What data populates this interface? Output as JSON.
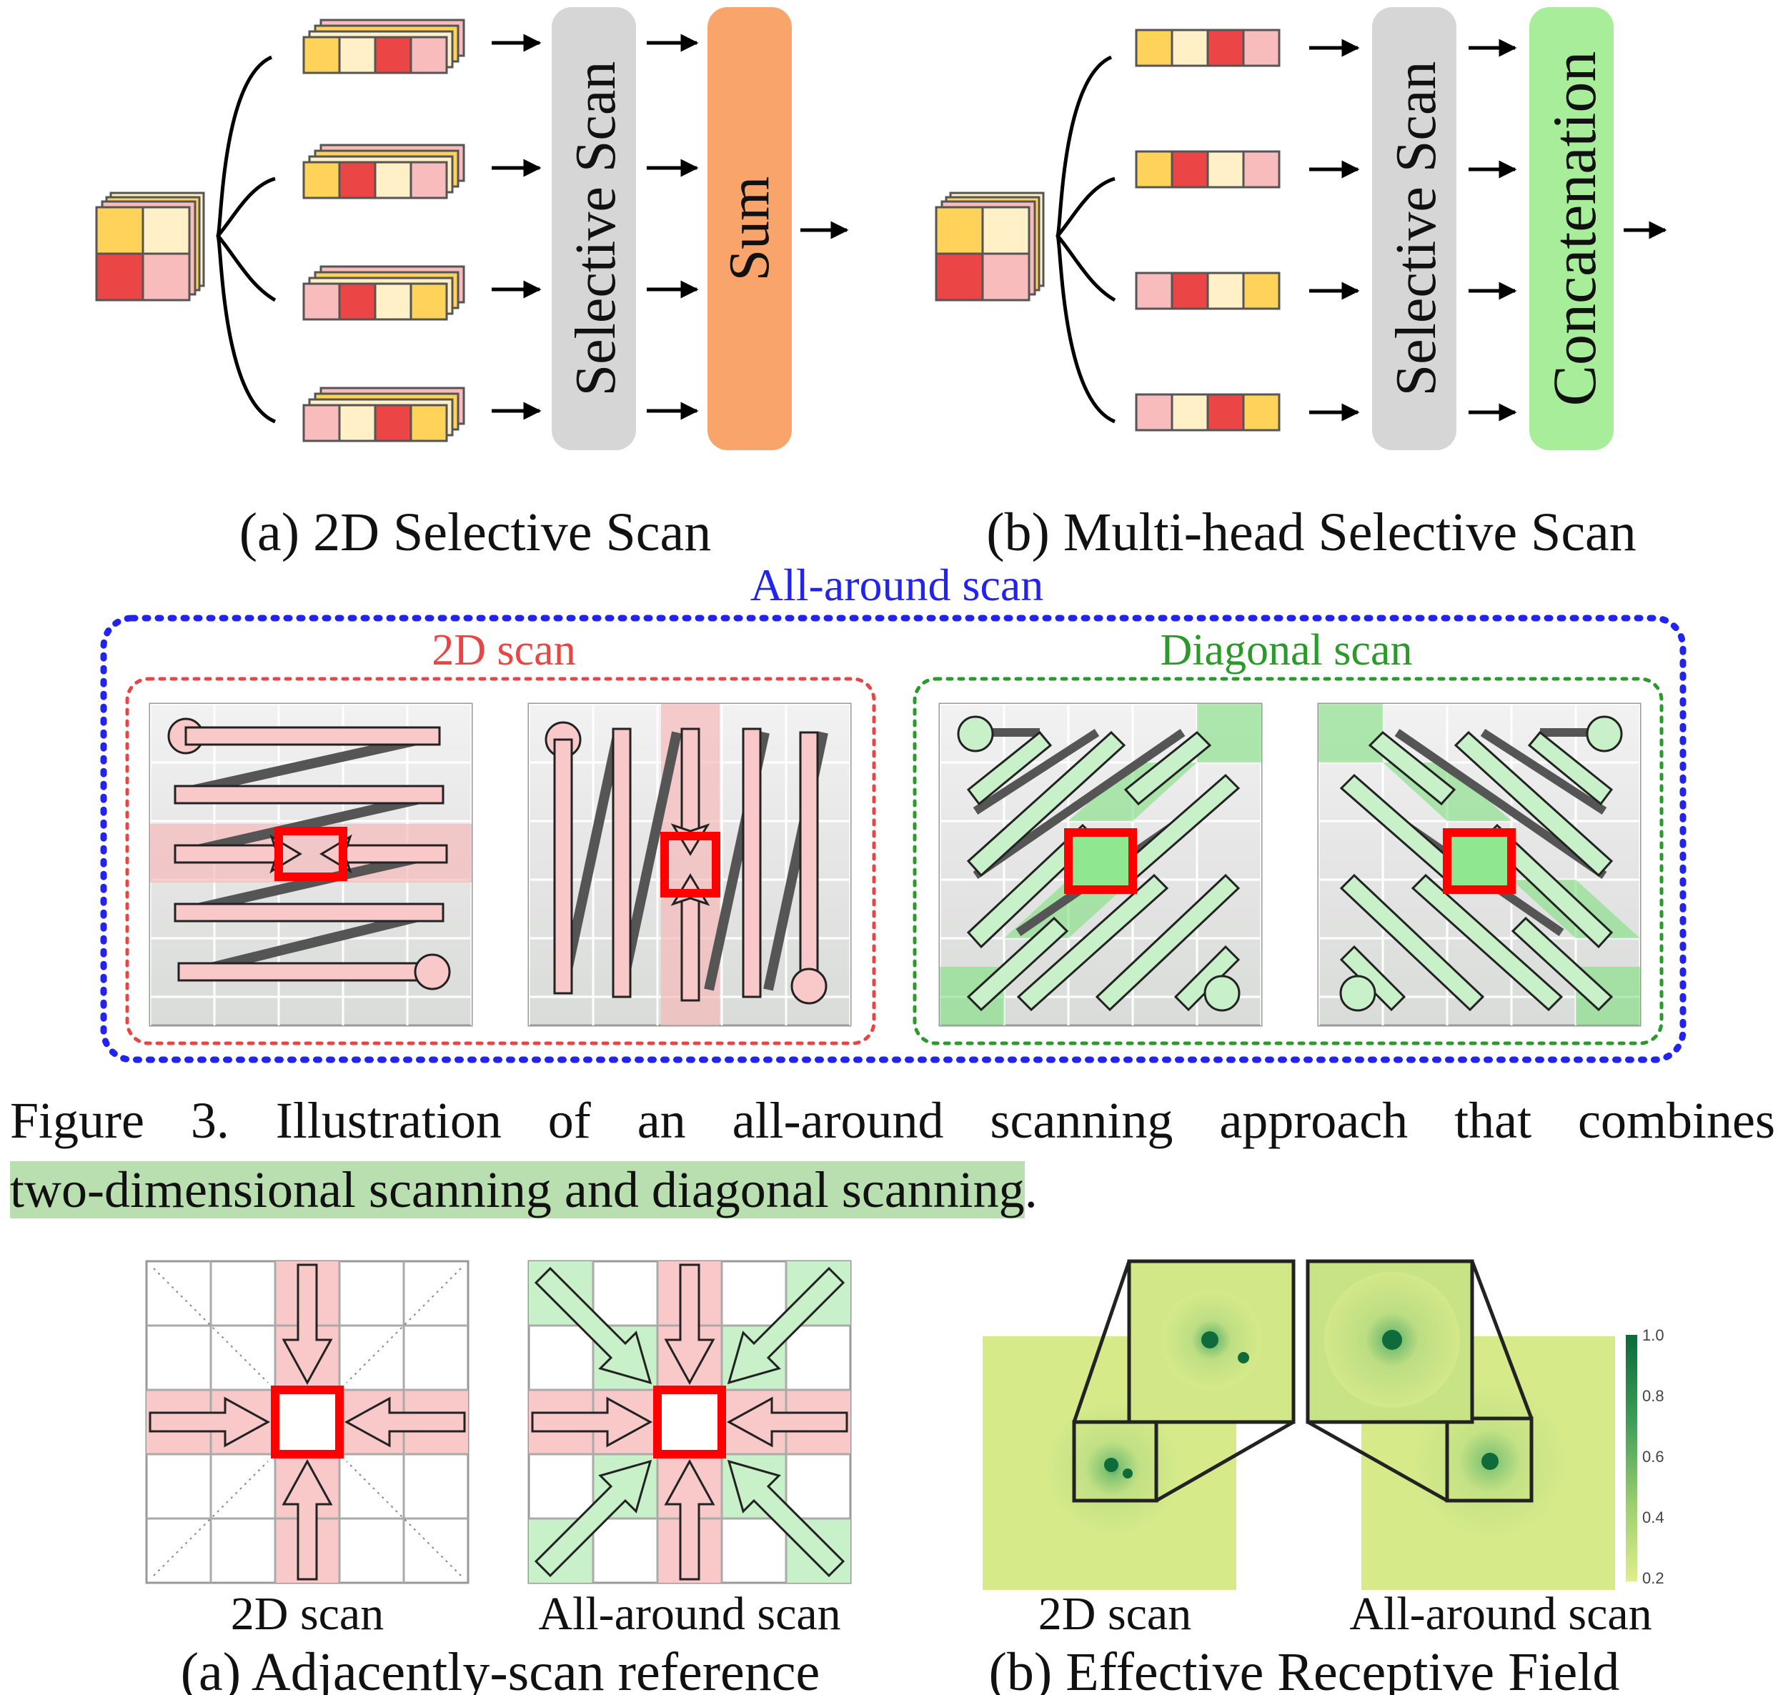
{
  "panel_a_top": {
    "block1": "Selective Scan",
    "block2": "Sum",
    "caption": "(a) 2D Selective Scan"
  },
  "panel_b_top": {
    "block1": "Selective Scan",
    "block2": "Concatenation",
    "caption": "(b) Multi-head Selective Scan"
  },
  "all_around": {
    "title": "All-around scan",
    "group_2d": "2D scan",
    "group_diag": "Diagonal scan"
  },
  "figure_caption": {
    "line1": "Figure 3.  Illustration of an all-around scanning approach that combines",
    "highlight": "two-dimensional scanning and diagonal scanning",
    "tail": "."
  },
  "bottom_a": {
    "label_left": "2D scan",
    "label_right": "All-around scan",
    "caption": "(a) Adjacently-scan reference"
  },
  "bottom_b": {
    "label_left": "2D scan",
    "label_right": "All-around scan",
    "caption": "(b) Effective Receptive Field",
    "colorbar_ticks": [
      "1.0",
      "0.8",
      "0.6",
      "0.4",
      "0.2"
    ]
  },
  "colors": {
    "yellow": "#ffd35a",
    "cream": "#fff0c8",
    "red": "#ec4545",
    "pink": "#f8bcbc",
    "scan_pink": "#f9c9c9",
    "scan_green": "#c9f1c9",
    "blue_dash": "#2323f0",
    "red_dash": "#e84545",
    "green_dash": "#2a9a2a",
    "sum": "#f8a46a",
    "concat": "#a8ee9a",
    "selective": "#d6d6d6"
  }
}
